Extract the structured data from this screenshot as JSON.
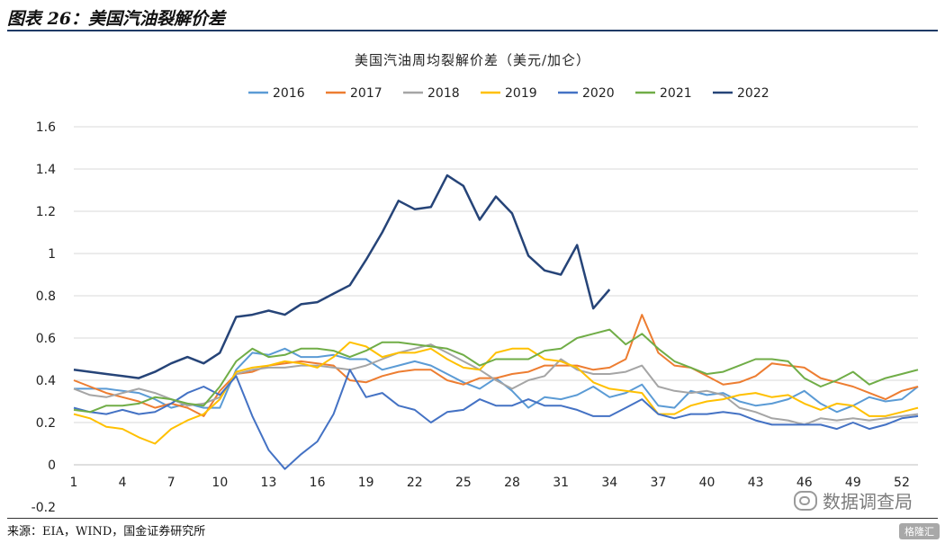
{
  "figure": {
    "title": "图表 26：美国汽油裂解价差",
    "source": "来源：EIA，WIND，国金证券研究所",
    "watermark": "数据调查局",
    "badge": "格隆汇"
  },
  "chart_data": {
    "type": "line",
    "title": "美国汽油周均裂解价差（美元/加仑）",
    "xlabel": "",
    "ylabel": "",
    "xlim": [
      1,
      53
    ],
    "ylim": [
      -0.2,
      1.6
    ],
    "yticks": [
      -0.2,
      0,
      0.2,
      0.4,
      0.6,
      0.8,
      1,
      1.2,
      1.4,
      1.6
    ],
    "ytick_labels": [
      "-0.2",
      "0",
      "0.2",
      "0.4",
      "0.6",
      "0.8",
      "1",
      "1.2",
      "1.4",
      "1.6"
    ],
    "xticks": [
      1,
      4,
      7,
      10,
      13,
      16,
      19,
      22,
      25,
      28,
      31,
      34,
      37,
      40,
      43,
      46,
      49,
      52
    ],
    "grid": true,
    "legend_position": "top",
    "colors": {
      "2016": "#5b9bd5",
      "2017": "#ed7d31",
      "2018": "#a5a5a5",
      "2019": "#ffc000",
      "2020": "#4472c4",
      "2021": "#70ad47",
      "2022": "#264478",
      "grid": "#d9d9d9"
    },
    "series": [
      {
        "name": "2016",
        "values": [
          0.36,
          0.36,
          0.36,
          0.35,
          0.34,
          0.31,
          0.27,
          0.29,
          0.27,
          0.27,
          0.45,
          0.53,
          0.52,
          0.55,
          0.51,
          0.51,
          0.52,
          0.5,
          0.5,
          0.45,
          0.47,
          0.49,
          0.47,
          0.43,
          0.39,
          0.36,
          0.41,
          0.35,
          0.27,
          0.32,
          0.31,
          0.33,
          0.37,
          0.32,
          0.34,
          0.38,
          0.28,
          0.27,
          0.35,
          0.33,
          0.34,
          0.3,
          0.28,
          0.29,
          0.31,
          0.35,
          0.29,
          0.25,
          0.28,
          0.32,
          0.3,
          0.31,
          0.37
        ]
      },
      {
        "name": "2017",
        "values": [
          0.4,
          0.37,
          0.34,
          0.32,
          0.3,
          0.27,
          0.29,
          0.27,
          0.23,
          0.35,
          0.43,
          0.44,
          0.47,
          0.48,
          0.49,
          0.48,
          0.47,
          0.4,
          0.39,
          0.42,
          0.44,
          0.45,
          0.45,
          0.4,
          0.38,
          0.41,
          0.41,
          0.43,
          0.44,
          0.47,
          0.47,
          0.47,
          0.45,
          0.46,
          0.5,
          0.71,
          0.53,
          0.47,
          0.46,
          0.42,
          0.38,
          0.39,
          0.42,
          0.48,
          0.47,
          0.46,
          0.41,
          0.39,
          0.37,
          0.34,
          0.31,
          0.35,
          0.37
        ]
      },
      {
        "name": "2018",
        "values": [
          0.36,
          0.33,
          0.32,
          0.34,
          0.36,
          0.34,
          0.31,
          0.28,
          0.29,
          0.32,
          0.43,
          0.45,
          0.46,
          0.46,
          0.47,
          0.47,
          0.46,
          0.45,
          0.47,
          0.5,
          0.53,
          0.55,
          0.57,
          0.53,
          0.49,
          0.45,
          0.4,
          0.36,
          0.4,
          0.42,
          0.5,
          0.45,
          0.43,
          0.43,
          0.44,
          0.47,
          0.37,
          0.35,
          0.34,
          0.35,
          0.33,
          0.27,
          0.25,
          0.22,
          0.21,
          0.19,
          0.22,
          0.21,
          0.22,
          0.21,
          0.22,
          0.23,
          0.24
        ]
      },
      {
        "name": "2019",
        "values": [
          0.24,
          0.22,
          0.18,
          0.17,
          0.13,
          0.1,
          0.17,
          0.21,
          0.24,
          0.31,
          0.44,
          0.46,
          0.47,
          0.49,
          0.48,
          0.46,
          0.51,
          0.58,
          0.56,
          0.51,
          0.53,
          0.53,
          0.55,
          0.5,
          0.46,
          0.45,
          0.53,
          0.55,
          0.55,
          0.5,
          0.49,
          0.46,
          0.39,
          0.36,
          0.35,
          0.34,
          0.24,
          0.24,
          0.28,
          0.3,
          0.31,
          0.33,
          0.34,
          0.32,
          0.33,
          0.29,
          0.26,
          0.29,
          0.28,
          0.23,
          0.23,
          0.25,
          0.27
        ]
      },
      {
        "name": "2020",
        "values": [
          0.27,
          0.25,
          0.24,
          0.26,
          0.24,
          0.25,
          0.29,
          0.34,
          0.37,
          0.33,
          0.42,
          0.23,
          0.07,
          -0.02,
          0.05,
          0.11,
          0.24,
          0.45,
          0.32,
          0.34,
          0.28,
          0.26,
          0.2,
          0.25,
          0.26,
          0.31,
          0.28,
          0.28,
          0.31,
          0.28,
          0.28,
          0.26,
          0.23,
          0.23,
          0.27,
          0.31,
          0.24,
          0.22,
          0.24,
          0.24,
          0.25,
          0.24,
          0.21,
          0.19,
          0.19,
          0.19,
          0.19,
          0.17,
          0.2,
          0.17,
          0.19,
          0.22,
          0.23
        ]
      },
      {
        "name": "2021",
        "values": [
          0.26,
          0.25,
          0.28,
          0.28,
          0.29,
          0.32,
          0.31,
          0.29,
          0.28,
          0.37,
          0.49,
          0.55,
          0.51,
          0.52,
          0.55,
          0.55,
          0.54,
          0.51,
          0.54,
          0.58,
          0.58,
          0.57,
          0.56,
          0.55,
          0.52,
          0.47,
          0.5,
          0.5,
          0.5,
          0.54,
          0.55,
          0.6,
          0.62,
          0.64,
          0.57,
          0.62,
          0.55,
          0.49,
          0.46,
          0.43,
          0.44,
          0.47,
          0.5,
          0.5,
          0.49,
          0.41,
          0.37,
          0.4,
          0.44,
          0.38,
          0.41,
          0.43,
          0.45
        ]
      },
      {
        "name": "2022",
        "values": [
          0.45,
          0.44,
          0.43,
          0.42,
          0.41,
          0.44,
          0.48,
          0.51,
          0.48,
          0.53,
          0.7,
          0.71,
          0.73,
          0.71,
          0.76,
          0.77,
          0.81,
          0.85,
          0.97,
          1.1,
          1.25,
          1.21,
          1.22,
          1.37,
          1.32,
          1.16,
          1.27,
          1.19,
          0.99,
          0.92,
          0.9,
          1.04,
          0.74,
          0.83
        ]
      }
    ]
  }
}
